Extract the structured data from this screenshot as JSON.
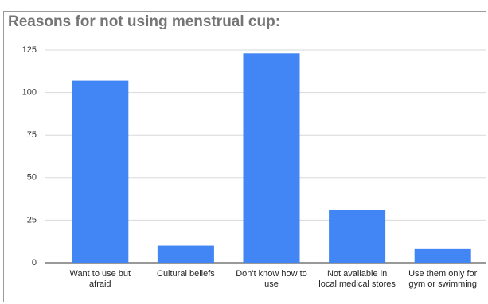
{
  "chart_data": {
    "type": "bar",
    "title": "Reasons for not using menstrual cup:",
    "categories": [
      "Want to use but afraid",
      "Cultural beliefs",
      "Don't know how to use",
      "Not available in local medical stores",
      "Use them only for gym or swimming"
    ],
    "values": [
      107,
      10,
      123,
      31,
      8
    ],
    "color": "#4285f4",
    "ylim": [
      0,
      125
    ],
    "yticks": [
      0,
      25,
      50,
      75,
      100,
      125
    ],
    "grid": true
  }
}
